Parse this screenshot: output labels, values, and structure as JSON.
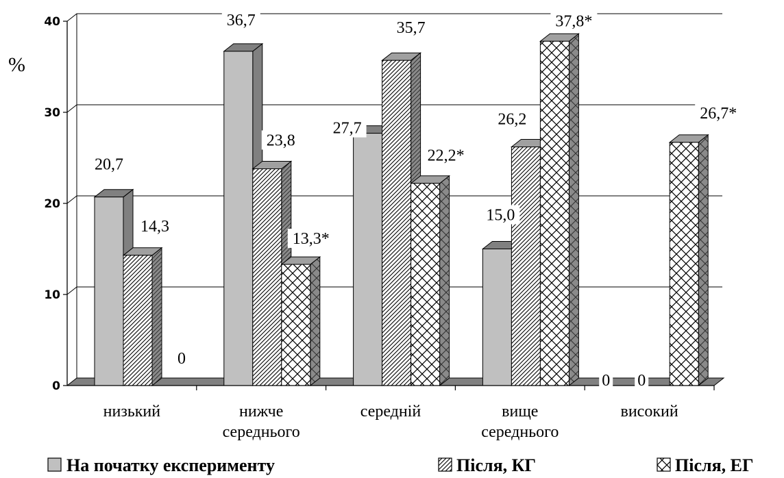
{
  "chart_data": {
    "type": "bar",
    "ylabel": "%",
    "ylim": [
      0,
      40
    ],
    "yticks": [
      "0",
      "10",
      "20",
      "30",
      "40"
    ],
    "categories": [
      [
        "низький"
      ],
      [
        "нижче",
        "середнього"
      ],
      [
        "середній"
      ],
      [
        "вище",
        "середнього"
      ],
      [
        "високий"
      ]
    ],
    "series": [
      {
        "name": "На початку експерименту",
        "values": [
          20.7,
          36.7,
          27.7,
          15.0,
          0
        ],
        "labels": [
          "20,7",
          "36,7",
          "27,7",
          "15,0",
          "0"
        ],
        "pattern": "solid",
        "color": "#c0c0c0"
      },
      {
        "name": "Після, КГ",
        "values": [
          14.3,
          23.8,
          35.7,
          26.2,
          0
        ],
        "labels": [
          "14,3",
          "23,8",
          "35,7",
          "26,2",
          "0"
        ],
        "pattern": "diagonal-hatch",
        "color": "#ffffff"
      },
      {
        "name": "Після, ЕГ",
        "values": [
          0,
          13.3,
          22.2,
          37.8,
          26.7
        ],
        "labels": [
          "0",
          "13,3*",
          "22,2*",
          "37,8*",
          "26,7*"
        ],
        "pattern": "crosshatch",
        "color": "#ffffff"
      }
    ],
    "grid": true,
    "legend_position": "bottom",
    "style": "3d-column"
  },
  "colors": {
    "side": "#808080",
    "top": "#a0a0a0",
    "floor": "#808080"
  }
}
